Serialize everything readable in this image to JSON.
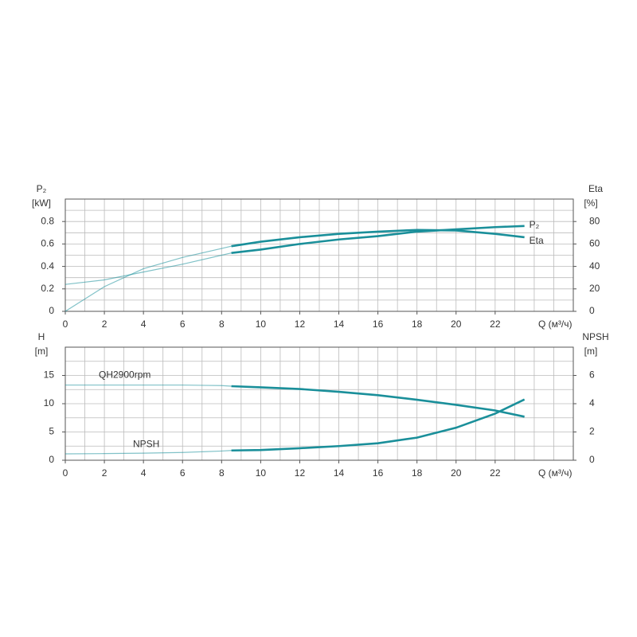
{
  "chart_data": [
    {
      "type": "line",
      "x": [
        0,
        2,
        4,
        6,
        8,
        8.5,
        10,
        12,
        14,
        16,
        18,
        20,
        22,
        23.5
      ],
      "xlim": [
        0,
        26
      ],
      "xticks": [
        0,
        2,
        4,
        6,
        8,
        10,
        12,
        14,
        16,
        18,
        20,
        22
      ],
      "x_label": "Q (м³/ч)",
      "ylim": [
        0,
        1.0
      ],
      "yticks": [
        0,
        0.2,
        0.4,
        0.6,
        0.8
      ],
      "y_label": "P₂",
      "y_unit": "[kW]",
      "y2lim": [
        0,
        100
      ],
      "y2ticks": [
        0,
        20,
        40,
        60,
        80
      ],
      "y2_label": "Eta",
      "y2_unit": "[%]",
      "grid": true,
      "grid_step_x": 1,
      "grid_step_y": 0.1,
      "thin_below_x": 8.5,
      "series": [
        {
          "name": "P₂",
          "color": "#1a8f9a",
          "values": [
            0.24,
            0.28,
            0.35,
            0.42,
            0.5,
            0.52,
            0.55,
            0.6,
            0.64,
            0.67,
            0.71,
            0.73,
            0.75,
            0.76
          ]
        },
        {
          "name": "Eta",
          "color": "#1a8f9a",
          "axis": "y2",
          "values": [
            0,
            22,
            38,
            48,
            56,
            58,
            62,
            66,
            69,
            71,
            72.5,
            72,
            69,
            66
          ]
        }
      ]
    },
    {
      "type": "line",
      "x": [
        0,
        2,
        4,
        6,
        8,
        8.5,
        10,
        12,
        14,
        16,
        18,
        20,
        22,
        23.5
      ],
      "xlim": [
        0,
        26
      ],
      "xticks": [
        0,
        2,
        4,
        6,
        8,
        10,
        12,
        14,
        16,
        18,
        20,
        22
      ],
      "x_label": "Q (м³/ч)",
      "ylim": [
        0,
        20
      ],
      "yticks": [
        0,
        5,
        10,
        15
      ],
      "y_label": "H",
      "y_unit": "[m]",
      "y2lim": [
        0,
        8
      ],
      "y2ticks": [
        0,
        2,
        4,
        6
      ],
      "y2_label": "NPSH",
      "y2_unit": "[m]",
      "grid": true,
      "grid_step_x": 1,
      "grid_step_y": 2.5,
      "thin_below_x": 8.5,
      "series": [
        {
          "name": "QH2900rpm",
          "color": "#1a8f9a",
          "values": [
            13.3,
            13.3,
            13.3,
            13.3,
            13.2,
            13.1,
            12.9,
            12.6,
            12.1,
            11.5,
            10.7,
            9.8,
            8.8,
            7.7
          ]
        },
        {
          "name": "NPSH",
          "color": "#1a8f9a",
          "axis": "y2",
          "values": [
            0.45,
            0.47,
            0.5,
            0.55,
            0.65,
            0.69,
            0.72,
            0.85,
            1.0,
            1.2,
            1.6,
            2.3,
            3.3,
            4.3
          ]
        }
      ]
    }
  ]
}
